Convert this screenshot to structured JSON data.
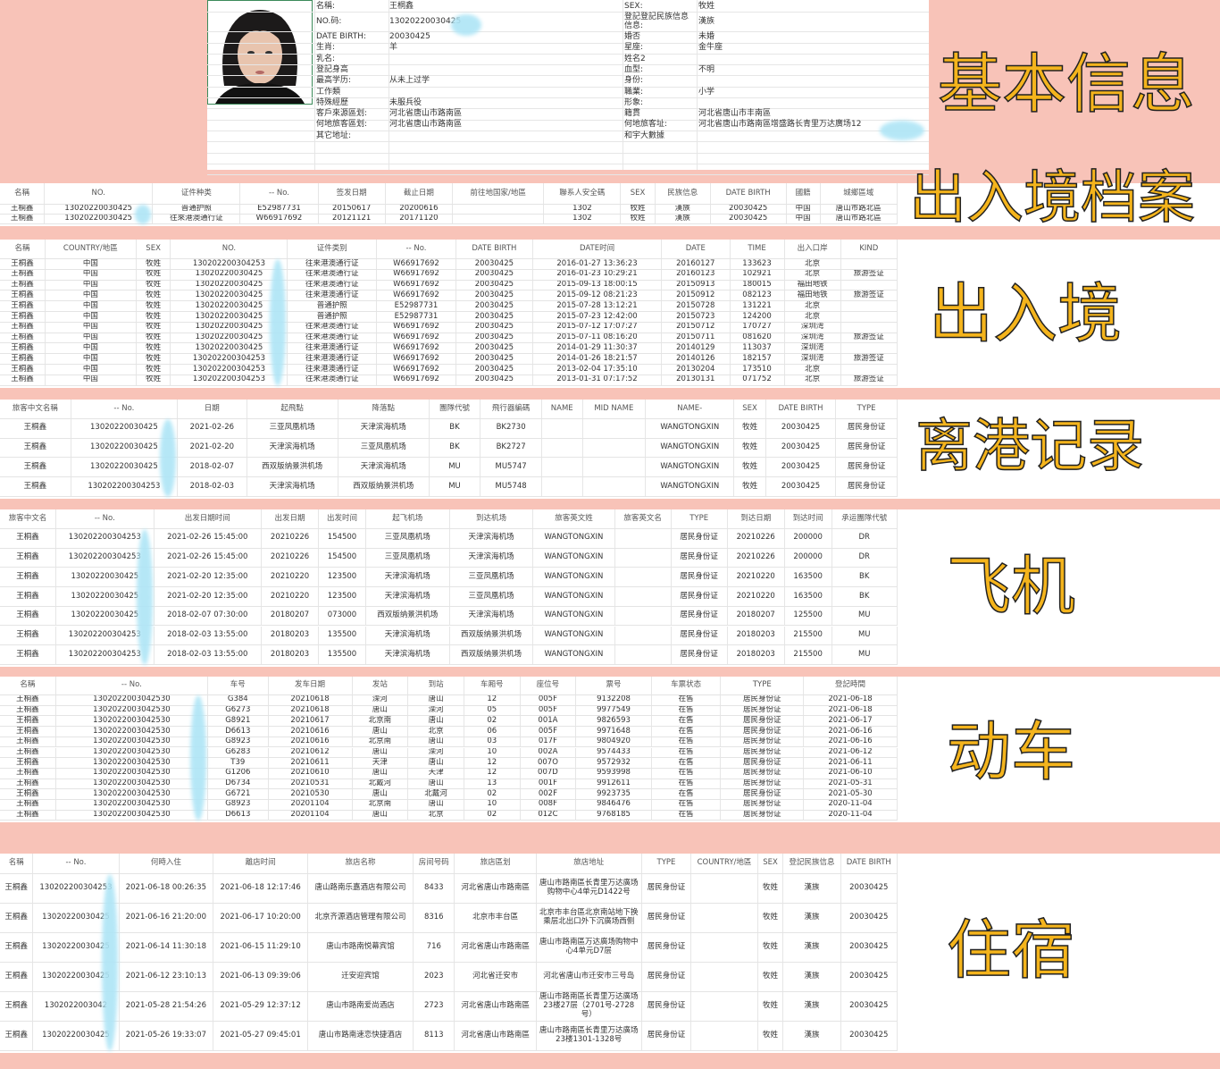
{
  "overlay_titles": {
    "basic": "基本信息",
    "archive": "出入境档案",
    "entry": "出入境",
    "departure": "离港记录",
    "flight": "飞机",
    "train": "动车",
    "hotel": "住宿"
  },
  "colors": {
    "background": "#f8c3b8",
    "overlay_text": "#f4b41c",
    "redaction": "#aee5f6"
  },
  "basic_info": {
    "left": [
      {
        "label": "名稱:",
        "value": "王桐鑫"
      },
      {
        "label": "NO.码:",
        "value": "13020220030425"
      },
      {
        "label": "DATE BIRTH:",
        "value": "20030425"
      },
      {
        "label": "生肖:",
        "value": "羊"
      },
      {
        "label": "乳名:",
        "value": ""
      },
      {
        "label": "登記身高",
        "value": ""
      },
      {
        "label": "最高学历:",
        "value": "从未上过学"
      },
      {
        "label": "工作類",
        "value": ""
      },
      {
        "label": "特殊經歷",
        "value": "未服兵役"
      },
      {
        "label": "客戶來源區划:",
        "value": "河北省唐山市路南區"
      },
      {
        "label": "何地旅客區划:",
        "value": "河北省唐山市路南區"
      },
      {
        "label": "其它地址:",
        "value": ""
      }
    ],
    "right": [
      {
        "label": "SEX:",
        "value": "牧姓"
      },
      {
        "label": "登記登記民族信息信息:",
        "value": "漢族"
      },
      {
        "label": "婚否",
        "value": "未婚"
      },
      {
        "label": "星座:",
        "value": "金牛座"
      },
      {
        "label": "姓名2",
        "value": ""
      },
      {
        "label": "血型:",
        "value": "不明"
      },
      {
        "label": "身份:",
        "value": ""
      },
      {
        "label": "職業:",
        "value": "小学"
      },
      {
        "label": "形象:",
        "value": ""
      },
      {
        "label": "籍貫",
        "value": "河北省唐山市丰南區"
      },
      {
        "label": "何地旅客址:",
        "value": "河北省唐山市路南區增盛路长青里万达廣场12"
      },
      {
        "label": "和宇大數據",
        "value": ""
      }
    ]
  },
  "sections": {
    "archive": {
      "columns": [
        "名稱",
        "NO.",
        "证件种类",
        "-- No.",
        "签发日期",
        "截止日期",
        "前往地国家/地區",
        "聯系人安全碼",
        "SEX",
        "民族信息",
        "DATE BIRTH",
        "國籍",
        "城鄉區域"
      ],
      "rows": [
        [
          "王桐鑫",
          "13020220030425",
          "普通护照",
          "E52987731",
          "20150617",
          "20200616",
          "",
          "1302",
          "牧姓",
          "漢族",
          "20030425",
          "中国",
          "唐山市路北區"
        ],
        [
          "王桐鑫",
          "13020220030425",
          "往來港澳通行证",
          "W66917692",
          "20121121",
          "20171120",
          "",
          "1302",
          "牧姓",
          "漢族",
          "20030425",
          "中国",
          "唐山市路北區"
        ]
      ]
    },
    "entry": {
      "columns": [
        "名稱",
        "COUNTRY/地區",
        "SEX",
        "NO.",
        "证件类别",
        "-- No.",
        "DATE BIRTH",
        "DATE时间",
        "DATE",
        "TIME",
        "出入口岸",
        "KIND"
      ],
      "rows": [
        [
          "王桐鑫",
          "中国",
          "牧姓",
          "130202200304253",
          "往来港澳通行证",
          "W66917692",
          "20030425",
          "2016-01-27 13:36:23",
          "20160127",
          "133623",
          "北京",
          ""
        ],
        [
          "王桐鑫",
          "中国",
          "牧姓",
          "13020220030425",
          "往来港澳通行证",
          "W66917692",
          "20030425",
          "2016-01-23 10:29:21",
          "20160123",
          "102921",
          "北京",
          "旅游签证"
        ],
        [
          "王桐鑫",
          "中国",
          "牧姓",
          "13020220030425",
          "往来港澳通行证",
          "W66917692",
          "20030425",
          "2015-09-13 18:00:15",
          "20150913",
          "180015",
          "福田地铁",
          ""
        ],
        [
          "王桐鑫",
          "中国",
          "牧姓",
          "13020220030425",
          "往来港澳通行证",
          "W66917692",
          "20030425",
          "2015-09-12 08:21:23",
          "20150912",
          "082123",
          "福田地铁",
          "旅游签证"
        ],
        [
          "王桐鑫",
          "中国",
          "牧姓",
          "13020220030425",
          "普通护照",
          "E52987731",
          "20030425",
          "2015-07-28 13:12:21",
          "20150728",
          "131221",
          "北京",
          ""
        ],
        [
          "王桐鑫",
          "中国",
          "牧姓",
          "13020220030425",
          "普通护照",
          "E52987731",
          "20030425",
          "2015-07-23 12:42:00",
          "20150723",
          "124200",
          "北京",
          ""
        ],
        [
          "王桐鑫",
          "中国",
          "牧姓",
          "13020220030425",
          "往来港澳通行证",
          "W66917692",
          "20030425",
          "2015-07-12 17:07:27",
          "20150712",
          "170727",
          "深圳湾",
          ""
        ],
        [
          "王桐鑫",
          "中国",
          "牧姓",
          "13020220030425",
          "往来港澳通行证",
          "W66917692",
          "20030425",
          "2015-07-11 08:16:20",
          "20150711",
          "081620",
          "深圳湾",
          "旅游签证"
        ],
        [
          "王桐鑫",
          "中国",
          "牧姓",
          "13020220030425",
          "往来港澳通行证",
          "W66917692",
          "20030425",
          "2014-01-29 11:30:37",
          "20140129",
          "113037",
          "深圳湾",
          ""
        ],
        [
          "王桐鑫",
          "中国",
          "牧姓",
          "130202200304253",
          "往来港澳通行证",
          "W66917692",
          "20030425",
          "2014-01-26 18:21:57",
          "20140126",
          "182157",
          "深圳湾",
          "旅游签证"
        ],
        [
          "王桐鑫",
          "中国",
          "牧姓",
          "130202200304253",
          "往来港澳通行证",
          "W66917692",
          "20030425",
          "2013-02-04 17:35:10",
          "20130204",
          "173510",
          "北京",
          ""
        ],
        [
          "王桐鑫",
          "中国",
          "牧姓",
          "130202200304253",
          "往来港澳通行证",
          "W66917692",
          "20030425",
          "2013-01-31 07:17:52",
          "20130131",
          "071752",
          "北京",
          "旅游签证"
        ]
      ]
    },
    "departure": {
      "columns": [
        "旅客中文名稱",
        "-- No.",
        "日期",
        "起飛點",
        "降落點",
        "團隊代號",
        "飛行器編碼",
        "NAME",
        "MID NAME",
        "NAME-",
        "SEX",
        "DATE BIRTH",
        "TYPE"
      ],
      "rows": [
        [
          "王桐鑫",
          "13020220030425",
          "2021-02-26",
          "三亚凤凰机场",
          "天津滨海机场",
          "BK",
          "BK2730",
          "",
          "",
          "WANGTONGXIN",
          "牧姓",
          "20030425",
          "居民身份证"
        ],
        [
          "王桐鑫",
          "13020220030425",
          "2021-02-20",
          "天津滨海机场",
          "三亚凤凰机场",
          "BK",
          "BK2727",
          "",
          "",
          "WANGTONGXIN",
          "牧姓",
          "20030425",
          "居民身份证"
        ],
        [
          "王桐鑫",
          "13020220030425",
          "2018-02-07",
          "西双版纳景洪机场",
          "天津滨海机场",
          "MU",
          "MU5747",
          "",
          "",
          "WANGTONGXIN",
          "牧姓",
          "20030425",
          "居民身份证"
        ],
        [
          "王桐鑫",
          "130202200304253",
          "2018-02-03",
          "天津滨海机场",
          "西双版纳景洪机场",
          "MU",
          "MU5748",
          "",
          "",
          "WANGTONGXIN",
          "牧姓",
          "20030425",
          "居民身份证"
        ]
      ]
    },
    "flight": {
      "columns": [
        "旅客中文名",
        "-- No.",
        "出发日期时间",
        "出发日期",
        "出发时间",
        "起飞机场",
        "到达机场",
        "旅客英文姓",
        "旅客英文名",
        "TYPE",
        "到达日期",
        "到达时间",
        "承运團隊代號"
      ],
      "rows": [
        [
          "王桐鑫",
          "130202200304253",
          "2021-02-26 15:45:00",
          "20210226",
          "154500",
          "三亚凤凰机场",
          "天津滨海机场",
          "WANGTONGXIN",
          "",
          "居民身份证",
          "20210226",
          "200000",
          "DR"
        ],
        [
          "王桐鑫",
          "130202200304253",
          "2021-02-26 15:45:00",
          "20210226",
          "154500",
          "三亚凤凰机场",
          "天津滨海机场",
          "WANGTONGXIN",
          "",
          "居民身份证",
          "20210226",
          "200000",
          "DR"
        ],
        [
          "王桐鑫",
          "13020220030425",
          "2021-02-20 12:35:00",
          "20210220",
          "123500",
          "天津滨海机场",
          "三亚凤凰机场",
          "WANGTONGXIN",
          "",
          "居民身份证",
          "20210220",
          "163500",
          "BK"
        ],
        [
          "王桐鑫",
          "13020220030425",
          "2021-02-20 12:35:00",
          "20210220",
          "123500",
          "天津滨海机场",
          "三亚凤凰机场",
          "WANGTONGXIN",
          "",
          "居民身份证",
          "20210220",
          "163500",
          "BK"
        ],
        [
          "王桐鑫",
          "13020220030425",
          "2018-02-07 07:30:00",
          "20180207",
          "073000",
          "西双版纳景洪机场",
          "天津滨海机场",
          "WANGTONGXIN",
          "",
          "居民身份证",
          "20180207",
          "125500",
          "MU"
        ],
        [
          "王桐鑫",
          "130202200304253",
          "2018-02-03 13:55:00",
          "20180203",
          "135500",
          "天津滨海机场",
          "西双版纳景洪机场",
          "WANGTONGXIN",
          "",
          "居民身份证",
          "20180203",
          "215500",
          "MU"
        ],
        [
          "王桐鑫",
          "130202200304253",
          "2018-02-03 13:55:00",
          "20180203",
          "135500",
          "天津滨海机场",
          "西双版纳景洪机场",
          "WANGTONGXIN",
          "",
          "居民身份证",
          "20180203",
          "215500",
          "MU"
        ]
      ]
    },
    "train": {
      "columns": [
        "名稱",
        "-- No.",
        "车号",
        "发车日期",
        "发站",
        "到站",
        "车厢号",
        "座位号",
        "票号",
        "车票状态",
        "TYPE",
        "登記時間"
      ],
      "rows": [
        [
          "王桐鑫",
          "1302022003042530",
          "G384",
          "20210618",
          "滦河",
          "唐山",
          "12",
          "005F",
          "9132208",
          "在售",
          "居民身份证",
          "2021-06-18"
        ],
        [
          "王桐鑫",
          "1302022003042530",
          "G6273",
          "20210618",
          "唐山",
          "滦河",
          "05",
          "005F",
          "9977549",
          "在售",
          "居民身份证",
          "2021-06-18"
        ],
        [
          "王桐鑫",
          "1302022003042530",
          "G8921",
          "20210617",
          "北京南",
          "唐山",
          "02",
          "001A",
          "9826593",
          "在售",
          "居民身份证",
          "2021-06-17"
        ],
        [
          "王桐鑫",
          "1302022003042530",
          "D6613",
          "20210616",
          "唐山",
          "北京",
          "06",
          "005F",
          "9971648",
          "在售",
          "居民身份证",
          "2021-06-16"
        ],
        [
          "王桐鑫",
          "1302022003042530",
          "G8923",
          "20210616",
          "北京南",
          "唐山",
          "03",
          "017F",
          "9804920",
          "在售",
          "居民身份证",
          "2021-06-16"
        ],
        [
          "王桐鑫",
          "1302022003042530",
          "G6283",
          "20210612",
          "唐山",
          "滦河",
          "10",
          "002A",
          "9574433",
          "在售",
          "居民身份证",
          "2021-06-12"
        ],
        [
          "王桐鑫",
          "1302022003042530",
          "T39",
          "20210611",
          "天津",
          "唐山",
          "12",
          "007O",
          "9572932",
          "在售",
          "居民身份证",
          "2021-06-11"
        ],
        [
          "王桐鑫",
          "1302022003042530",
          "G1206",
          "20210610",
          "唐山",
          "天津",
          "12",
          "007D",
          "9593998",
          "在售",
          "居民身份证",
          "2021-06-10"
        ],
        [
          "王桐鑫",
          "1302022003042530",
          "D6734",
          "20210531",
          "北戴河",
          "唐山",
          "13",
          "001F",
          "9912611",
          "在售",
          "居民身份证",
          "2021-05-31"
        ],
        [
          "王桐鑫",
          "1302022003042530",
          "G6721",
          "20210530",
          "唐山",
          "北戴河",
          "02",
          "002F",
          "9923735",
          "在售",
          "居民身份证",
          "2021-05-30"
        ],
        [
          "王桐鑫",
          "1302022003042530",
          "G8923",
          "20201104",
          "北京南",
          "唐山",
          "10",
          "008F",
          "9846476",
          "在售",
          "居民身份证",
          "2020-11-04"
        ],
        [
          "王桐鑫",
          "1302022003042530",
          "D6613",
          "20201104",
          "唐山",
          "北京",
          "02",
          "012C",
          "9768185",
          "在售",
          "居民身份证",
          "2020-11-04"
        ]
      ]
    },
    "hotel": {
      "columns": [
        "名稱",
        "-- No.",
        "何時入住",
        "離店时间",
        "旅店名称",
        "房间号码",
        "旅店區划",
        "旅店地址",
        "TYPE",
        "COUNTRY/地區",
        "SEX",
        "登記民族信息",
        "DATE BIRTH"
      ],
      "rows": [
        [
          "王桐鑫",
          "130202200304253",
          "2021-06-18 00:26:35",
          "2021-06-18 12:17:46",
          "唐山路南乐嘉酒店有限公司",
          "8433",
          "河北省唐山市路南區",
          "唐山市路南區长青里万达廣场购物中心4单元D1422号",
          "居民身份证",
          "",
          "牧姓",
          "漢族",
          "20030425"
        ],
        [
          "王桐鑫",
          "13020220030425",
          "2021-06-16 21:20:00",
          "2021-06-17 10:20:00",
          "北京齐源酒店管理有限公司",
          "8316",
          "北京市丰台區",
          "北京市丰台區北京南站地下换乘层北出口外下沉廣场西侧",
          "居民身份证",
          "",
          "牧姓",
          "漢族",
          "20030425"
        ],
        [
          "王桐鑫",
          "13020220030425",
          "2021-06-14 11:30:18",
          "2021-06-15 11:29:10",
          "唐山市路南悦幕宾馆",
          "716",
          "河北省唐山市路南區",
          "唐山市路南區万达廣场购物中心4单元D7层",
          "居民身份证",
          "",
          "牧姓",
          "漢族",
          "20030425"
        ],
        [
          "王桐鑫",
          "13020220030425",
          "2021-06-12 23:10:13",
          "2021-06-13 09:39:06",
          "迁安迎宾馆",
          "2023",
          "河北省迁安市",
          "河北省唐山市迁安市三号岛",
          "居民身份证",
          "",
          "牧姓",
          "漢族",
          "20030425"
        ],
        [
          "王桐鑫",
          "1302022003042",
          "2021-05-28 21:54:26",
          "2021-05-29 12:37:12",
          "唐山市路南爱尚酒店",
          "2723",
          "河北省唐山市路南區",
          "唐山市路南區长青里万达廣场23楼27层（2701号-2728号）",
          "居民身份证",
          "",
          "牧姓",
          "漢族",
          "20030425"
        ],
        [
          "王桐鑫",
          "13020220030425",
          "2021-05-26 19:33:07",
          "2021-05-27 09:45:01",
          "唐山市路南速恋快捷酒店",
          "8113",
          "河北省唐山市路南區",
          "唐山市路南區长青里万达廣场23楼1301-1328号",
          "居民身份证",
          "",
          "牧姓",
          "漢族",
          "20030425"
        ]
      ]
    }
  }
}
